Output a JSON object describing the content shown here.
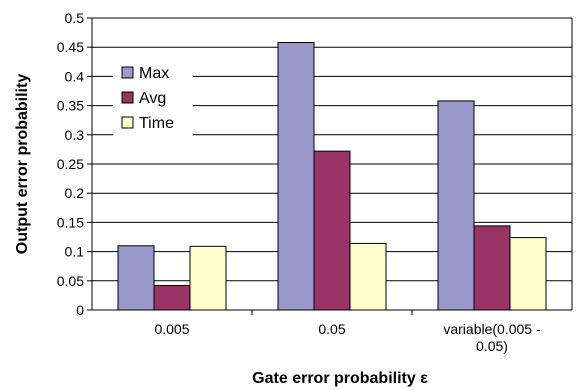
{
  "chart_data": {
    "type": "bar",
    "title": "",
    "xlabel": "Gate error probability ε",
    "ylabel": "Output error probability",
    "ylim": [
      0,
      0.5
    ],
    "yticks": [
      0,
      0.05,
      0.1,
      0.15,
      0.2,
      0.25,
      0.3,
      0.35,
      0.4,
      0.45,
      0.5
    ],
    "ytick_labels": [
      "0",
      "0.05",
      "0.1",
      "0.15",
      "0.2",
      "0.25",
      "0.3",
      "0.35",
      "0.4",
      "0.45",
      "0.5"
    ],
    "categories": [
      [
        "0.005"
      ],
      [
        "0.05"
      ],
      [
        "variable(0.005 -",
        "0.05)"
      ]
    ],
    "series": [
      {
        "name": "Max",
        "values": [
          0.11,
          0.458,
          0.358
        ],
        "color": "#9999cc"
      },
      {
        "name": "Avg",
        "values": [
          0.042,
          0.272,
          0.144
        ],
        "color": "#993366"
      },
      {
        "name": "Time",
        "values": [
          0.109,
          0.114,
          0.124
        ],
        "color": "#ffffcc"
      }
    ],
    "grid": "horizontal",
    "legend": "top-left"
  }
}
